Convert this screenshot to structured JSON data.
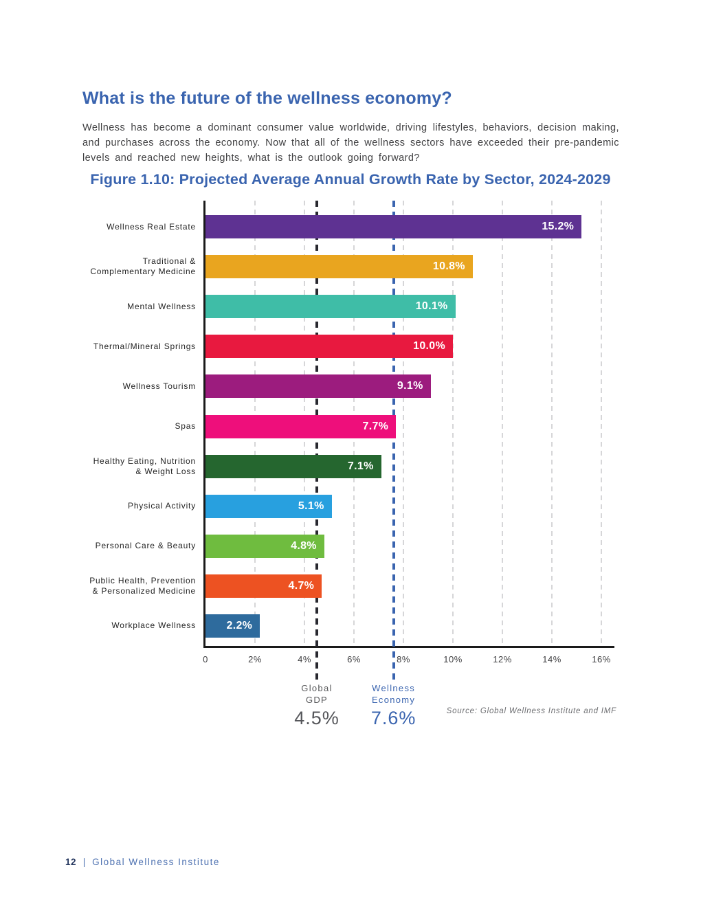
{
  "page": {
    "heading": "What is the future of the wellness economy?",
    "body": "Wellness has become a dominant consumer value worldwide, driving lifestyles, behaviors, decision making, and purchases across the economy. Now that all of the wellness sectors have exceeded their pre-pandemic levels and reached new heights, what is the outlook going forward?",
    "footer": {
      "page_number": "12",
      "separator": "|",
      "org": "Global Wellness Institute"
    }
  },
  "figure": {
    "title": "Figure 1.10: Projected Average Annual Growth Rate by Sector, 2024-2029",
    "source": "Source: Global Wellness Institute and IMF"
  },
  "chart_data": {
    "type": "bar",
    "orientation": "horizontal",
    "title": "Figure 1.10: Projected Average Annual Growth Rate by Sector, 2024-2029",
    "categories": [
      "Wellness Real Estate",
      "Traditional &\nComplementary Medicine",
      "Mental Wellness",
      "Thermal/Mineral Springs",
      "Wellness Tourism",
      "Spas",
      "Healthy Eating, Nutrition\n& Weight Loss",
      "Physical Activity",
      "Personal Care & Beauty",
      "Public Health, Prevention\n& Personalized Medicine",
      "Workplace Wellness"
    ],
    "values": [
      15.2,
      10.8,
      10.1,
      10.0,
      9.1,
      7.7,
      7.1,
      5.1,
      4.8,
      4.7,
      2.2
    ],
    "value_labels": [
      "15.2%",
      "10.8%",
      "10.1%",
      "10.0%",
      "9.1%",
      "7.7%",
      "7.1%",
      "5.1%",
      "4.8%",
      "4.7%",
      "2.2%"
    ],
    "bar_colors": [
      "#5E3292",
      "#E9A51F",
      "#3FBDA7",
      "#E8193F",
      "#9C1C7E",
      "#EE0F7B",
      "#25662F",
      "#28A0DF",
      "#6FBC3F",
      "#ED5222",
      "#2E6B9D"
    ],
    "xlim": [
      0,
      16.6
    ],
    "x_ticks": [
      {
        "value": 0,
        "label": "0"
      },
      {
        "value": 2,
        "label": "2%"
      },
      {
        "value": 4,
        "label": "4%"
      },
      {
        "value": 6,
        "label": "6%"
      },
      {
        "value": 8,
        "label": "8%"
      },
      {
        "value": 10,
        "label": "10%"
      },
      {
        "value": 12,
        "label": "12%"
      },
      {
        "value": 14,
        "label": "14%"
      },
      {
        "value": 16,
        "label": "16%"
      }
    ],
    "gridlines": [
      2,
      4,
      6,
      8,
      10,
      12,
      14,
      16
    ],
    "grid_color": "#D6D6D8",
    "reference_lines": [
      {
        "label_lines": "Global\nGDP",
        "value": 4.5,
        "value_label": "4.5%",
        "line_color": "#28282F",
        "text_color": "#58595B",
        "value_color": "#55565A"
      },
      {
        "label_lines": "Wellness\nEconomy",
        "value": 7.6,
        "value_label": "7.6%",
        "line_color": "#3A64AF",
        "text_color": "#3A64AF",
        "value_color": "#3A64AF"
      }
    ],
    "legend": "none",
    "value_label_position": "inside-end",
    "value_label_color": "#FFFFFF"
  }
}
